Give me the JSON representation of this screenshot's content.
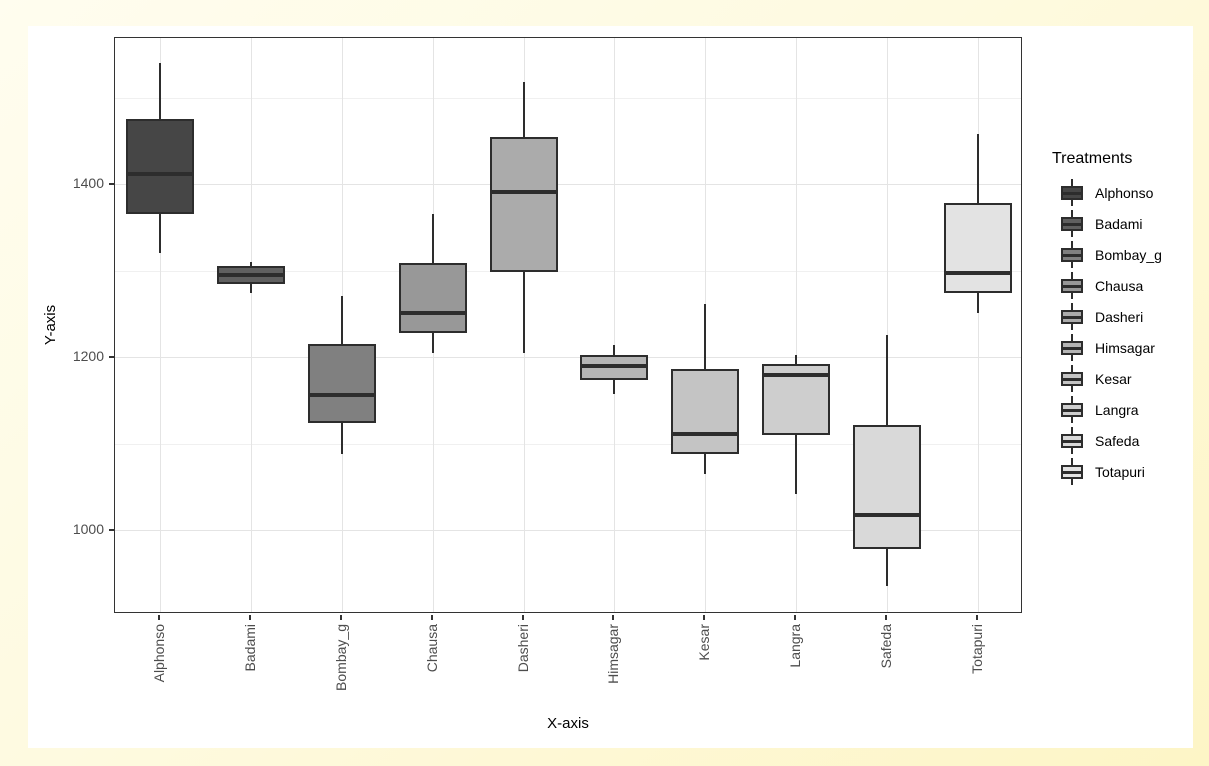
{
  "figure": {
    "background_outer": "#FDF6C8",
    "background_plot": "#FFFFFF"
  },
  "chart_data": {
    "type": "boxplot",
    "title": "",
    "xlabel": "X-axis",
    "ylabel": "Y-axis",
    "legend_title": "Treatments",
    "legend_position": "right",
    "grid": true,
    "ylim": [
      903,
      1569
    ],
    "y_major_ticks": [
      1000,
      1200,
      1400
    ],
    "y_minor_gridlines": [
      1100,
      1300,
      1500
    ],
    "categories": [
      "Alphonso",
      "Badami",
      "Bombay_g",
      "Chausa",
      "Dasheri",
      "Himsagar",
      "Kesar",
      "Langra",
      "Safeda",
      "Totapuri"
    ],
    "series": [
      {
        "name": "Alphonso",
        "fill": "#464646",
        "whisker_low": 1320,
        "q1": 1366,
        "median": 1412,
        "q3": 1475,
        "whisker_high": 1540
      },
      {
        "name": "Badami",
        "fill": "#606060",
        "whisker_low": 1274,
        "q1": 1284,
        "median": 1295,
        "q3": 1305,
        "whisker_high": 1310
      },
      {
        "name": "Bombay_g",
        "fill": "#808080",
        "whisker_low": 1088,
        "q1": 1124,
        "median": 1156,
        "q3": 1215,
        "whisker_high": 1271
      },
      {
        "name": "Chausa",
        "fill": "#989898",
        "whisker_low": 1205,
        "q1": 1228,
        "median": 1251,
        "q3": 1309,
        "whisker_high": 1365
      },
      {
        "name": "Dasheri",
        "fill": "#ABABAB",
        "whisker_low": 1205,
        "q1": 1299,
        "median": 1391,
        "q3": 1455,
        "whisker_high": 1518
      },
      {
        "name": "Himsagar",
        "fill": "#B5B5B5",
        "whisker_low": 1157,
        "q1": 1174,
        "median": 1190,
        "q3": 1203,
        "whisker_high": 1214
      },
      {
        "name": "Kesar",
        "fill": "#C4C4C4",
        "whisker_low": 1065,
        "q1": 1088,
        "median": 1111,
        "q3": 1186,
        "whisker_high": 1261
      },
      {
        "name": "Langra",
        "fill": "#CECECE",
        "whisker_low": 1042,
        "q1": 1110,
        "median": 1179,
        "q3": 1192,
        "whisker_high": 1202
      },
      {
        "name": "Safeda",
        "fill": "#D9D9D9",
        "whisker_low": 935,
        "q1": 978,
        "median": 1017,
        "q3": 1121,
        "whisker_high": 1226
      },
      {
        "name": "Totapuri",
        "fill": "#E3E3E3",
        "whisker_low": 1251,
        "q1": 1274,
        "median": 1297,
        "q3": 1378,
        "whisker_high": 1458
      }
    ],
    "style": {
      "line_color": "#2D2D2D",
      "panel_border_color": "#333333",
      "grid_major_color": "#E4E4E4",
      "grid_minor_color": "#F0F0F0",
      "tick_label_color": "#4D4D4D"
    }
  }
}
